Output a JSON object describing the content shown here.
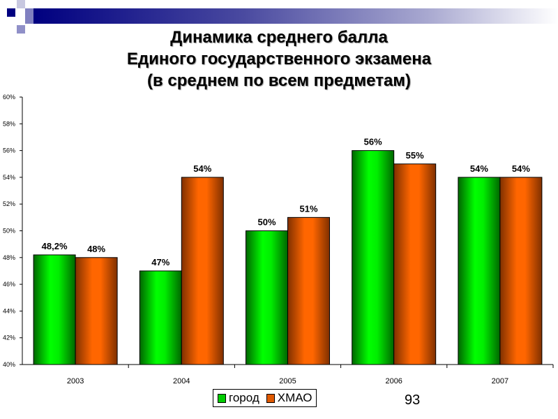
{
  "slide": {
    "page_number": "93"
  },
  "chart_data": {
    "type": "bar",
    "title": [
      "Динамика среднего балла",
      "Единого государственного экзамена",
      "(в среднем по всем предметам)"
    ],
    "categories": [
      "2003",
      "2004",
      "2005",
      "2006",
      "2007"
    ],
    "series": [
      {
        "name": "город",
        "color": "#00e000",
        "values": [
          48.2,
          47,
          50,
          56,
          54
        ],
        "labels": [
          "48,2%",
          "47%",
          "50%",
          "56%",
          "54%"
        ]
      },
      {
        "name": "ХМАО",
        "color": "#ff6600",
        "values": [
          48,
          54,
          51,
          55,
          54
        ],
        "labels": [
          "48%",
          "54%",
          "51%",
          "55%",
          "54%"
        ]
      }
    ],
    "ylim": [
      40,
      60
    ],
    "yticks": [
      "40%",
      "42%",
      "44%",
      "46%",
      "48%",
      "50%",
      "52%",
      "54%",
      "56%",
      "58%",
      "60%"
    ],
    "xlabel": "",
    "ylabel": "",
    "legend": "bottom-center",
    "grid": false
  }
}
